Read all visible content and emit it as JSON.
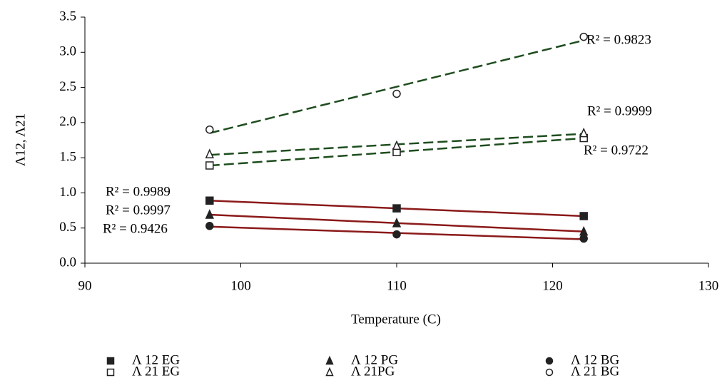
{
  "chart_data": {
    "type": "scatter",
    "x_label": "Temperature (C)",
    "y_label": "Λ12, Λ21",
    "x": [
      98,
      110,
      122
    ],
    "xlim": [
      90,
      130
    ],
    "xticks": [
      90,
      100,
      110,
      120,
      130
    ],
    "ylim": [
      0,
      3.5
    ],
    "yticks": [
      {
        "value": 0,
        "label": "0.0"
      },
      0.5,
      {
        "value": 1,
        "label": "1.0"
      },
      1.5,
      {
        "value": 2,
        "label": "2.0"
      },
      2.5,
      {
        "value": 3,
        "label": "3.0"
      },
      3.5
    ],
    "grid": false,
    "legend": "bottom",
    "series": [
      {
        "name": "Λ  12 EG",
        "marker": "square",
        "filled": true,
        "color": "#222222",
        "trend_color": "#8b1a1a",
        "dashed": false,
        "values": [
          0.89,
          0.78,
          0.67
        ],
        "annotation": "R² = 0.9989"
      },
      {
        "name": "Λ  21 EG",
        "marker": "square",
        "filled": false,
        "color": "#222222",
        "trend_color": "#1e4d1e",
        "dashed": true,
        "values": [
          1.39,
          1.58,
          1.78
        ],
        "annotation": "R² = 0.9722"
      },
      {
        "name": "Λ  12 PG",
        "marker": "triangle",
        "filled": true,
        "color": "#222222",
        "trend_color": "#8b1a1a",
        "dashed": false,
        "values": [
          0.69,
          0.57,
          0.45
        ],
        "annotation": "R² = 0.9997"
      },
      {
        "name": "Λ  21PG",
        "marker": "triangle",
        "filled": false,
        "color": "#222222",
        "trend_color": "#1e4d1e",
        "dashed": true,
        "values": [
          1.55,
          1.67,
          1.85
        ],
        "annotation": "R² = 0.9999"
      },
      {
        "name": "Λ  12 BG",
        "marker": "circle",
        "filled": true,
        "color": "#222222",
        "trend_color": "#8b1a1a",
        "dashed": false,
        "values": [
          0.53,
          0.41,
          0.35
        ],
        "annotation": "R² = 0.9426"
      },
      {
        "name": "Λ  21 BG",
        "marker": "circle",
        "filled": false,
        "color": "#222222",
        "trend_color": "#1e4d1e",
        "dashed": true,
        "values": [
          1.9,
          2.41,
          3.22
        ],
        "annotation": "R² = 0.9823"
      }
    ]
  }
}
